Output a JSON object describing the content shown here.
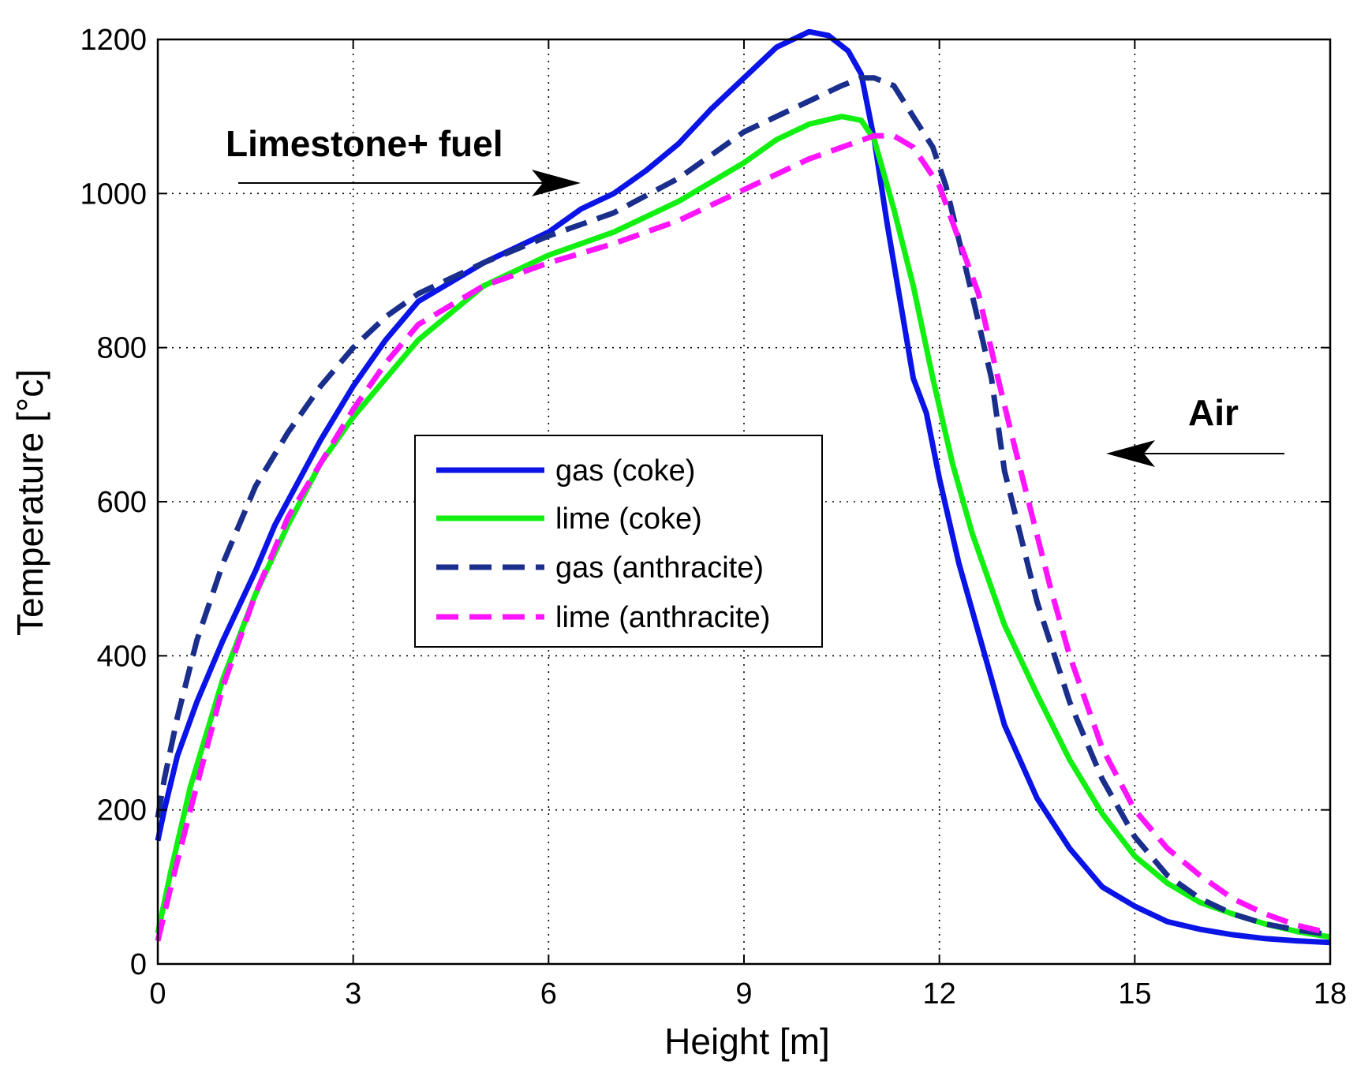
{
  "chart_data": {
    "type": "line",
    "title": "",
    "xlabel": "Height [m]",
    "ylabel": "Temperature [°c]",
    "xlim": [
      0,
      18
    ],
    "ylim": [
      0,
      1200
    ],
    "xticks": [
      0,
      3,
      6,
      9,
      12,
      15,
      18
    ],
    "yticks": [
      0,
      200,
      400,
      600,
      800,
      1000,
      1200
    ],
    "grid": true,
    "legend_position": "center-left",
    "annotations": [
      {
        "text": "Limestone+ fuel",
        "arrow": "right"
      },
      {
        "text": "Air",
        "arrow": "left"
      }
    ],
    "series": [
      {
        "name": "gas (coke)",
        "color": "#0a14e6",
        "dash": "solid",
        "x": [
          0,
          0.1,
          0.3,
          0.6,
          1.0,
          1.5,
          1.8,
          2.5,
          3.0,
          3.5,
          4.0,
          5.0,
          6.0,
          6.5,
          7.0,
          7.5,
          8.0,
          8.5,
          9.0,
          9.5,
          10.0,
          10.3,
          10.6,
          10.8,
          11.0,
          11.2,
          11.4,
          11.6,
          11.8,
          12.0,
          12.3,
          12.7,
          13.0,
          13.5,
          14.0,
          14.5,
          15.0,
          15.5,
          16.0,
          16.5,
          17.0,
          17.5,
          18.0
        ],
        "y": [
          160,
          200,
          270,
          340,
          420,
          510,
          570,
          680,
          750,
          810,
          860,
          910,
          950,
          980,
          1000,
          1030,
          1065,
          1110,
          1150,
          1190,
          1210,
          1205,
          1185,
          1155,
          1070,
          960,
          860,
          760,
          715,
          630,
          520,
          400,
          310,
          215,
          150,
          100,
          75,
          55,
          45,
          38,
          33,
          30,
          28
        ]
      },
      {
        "name": "lime (coke)",
        "color": "#11f011",
        "dash": "solid",
        "x": [
          0,
          0.2,
          0.5,
          1.0,
          1.5,
          2.0,
          2.5,
          3.0,
          3.5,
          4.0,
          5.0,
          6.0,
          7.0,
          8.0,
          9.0,
          9.5,
          10.0,
          10.5,
          10.8,
          11.0,
          11.3,
          11.6,
          11.9,
          12.2,
          12.5,
          13.0,
          13.5,
          14.0,
          14.5,
          15.0,
          15.5,
          16.0,
          16.5,
          17.0,
          17.5,
          18.0
        ],
        "y": [
          40,
          120,
          230,
          370,
          480,
          570,
          650,
          710,
          760,
          810,
          880,
          920,
          950,
          990,
          1040,
          1070,
          1090,
          1100,
          1095,
          1070,
          980,
          880,
          760,
          650,
          560,
          440,
          350,
          265,
          195,
          140,
          105,
          80,
          65,
          52,
          42,
          35
        ]
      },
      {
        "name": "gas (anthracite)",
        "color": "#1a2e8c",
        "dash": "dashed",
        "x": [
          0,
          0.1,
          0.3,
          0.6,
          1.0,
          1.5,
          2.0,
          2.5,
          3.0,
          3.5,
          4.0,
          5.0,
          6.0,
          7.0,
          8.0,
          9.0,
          10.0,
          10.5,
          10.8,
          11.0,
          11.3,
          11.6,
          11.9,
          12.1,
          12.3,
          12.5,
          12.8,
          13.0,
          13.5,
          14.0,
          14.5,
          15.0,
          15.5,
          16.0,
          16.5,
          17.0,
          17.5,
          18.0
        ],
        "y": [
          190,
          240,
          320,
          420,
          520,
          620,
          690,
          750,
          800,
          840,
          870,
          910,
          945,
          975,
          1020,
          1080,
          1120,
          1140,
          1150,
          1150,
          1140,
          1100,
          1060,
          1010,
          940,
          870,
          760,
          640,
          470,
          340,
          240,
          165,
          115,
          85,
          65,
          52,
          44,
          38
        ]
      },
      {
        "name": "lime (anthracite)",
        "color": "#ff14ff",
        "dash": "dashed",
        "x": [
          0,
          0.2,
          0.5,
          1.0,
          1.5,
          2.0,
          2.5,
          3.0,
          3.5,
          4.0,
          5.0,
          6.0,
          7.0,
          8.0,
          9.0,
          10.0,
          10.5,
          11.0,
          11.3,
          11.6,
          12.0,
          12.3,
          12.6,
          12.9,
          13.1,
          13.4,
          13.7,
          14.0,
          14.5,
          15.0,
          15.5,
          16.0,
          16.5,
          17.0,
          17.5,
          18.0
        ],
        "y": [
          30,
          100,
          200,
          360,
          480,
          580,
          650,
          720,
          780,
          830,
          880,
          910,
          935,
          965,
          1005,
          1045,
          1060,
          1075,
          1075,
          1060,
          1010,
          940,
          870,
          760,
          690,
          590,
          490,
          400,
          280,
          200,
          150,
          115,
          85,
          65,
          50,
          40
        ]
      }
    ]
  }
}
